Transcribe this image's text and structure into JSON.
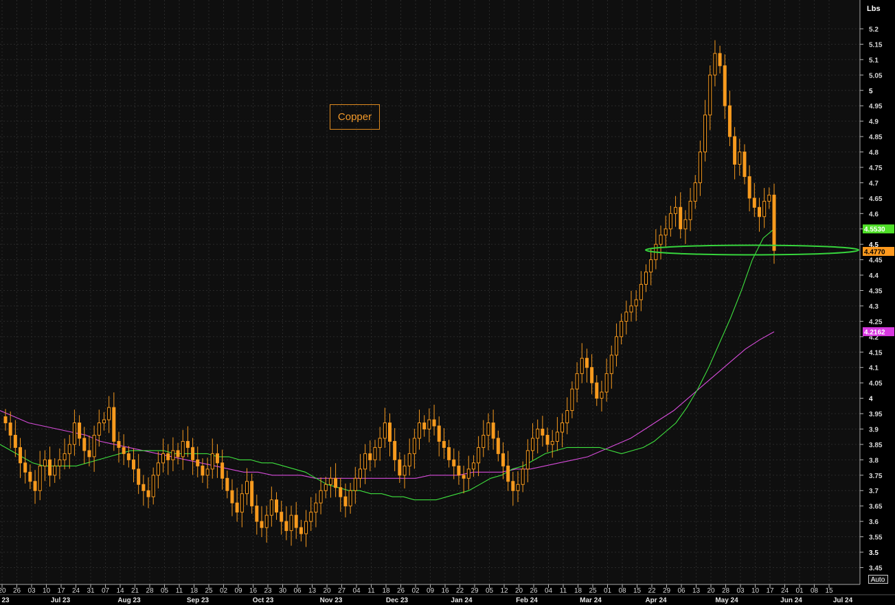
{
  "unit_label": "Lbs",
  "auto_label": "Auto",
  "chart_data": {
    "type": "candlestick",
    "title": "Copper",
    "ylim": [
      3.42,
      5.27
    ],
    "y_ticks": [
      3.45,
      3.5,
      3.55,
      3.6,
      3.65,
      3.7,
      3.75,
      3.8,
      3.85,
      3.9,
      3.95,
      4,
      4.05,
      4.1,
      4.15,
      4.2,
      4.25,
      4.3,
      4.35,
      4.4,
      4.45,
      4.5,
      4.55,
      4.6,
      4.65,
      4.7,
      4.75,
      4.8,
      4.85,
      4.9,
      4.95,
      5,
      5.05,
      5.1,
      5.15,
      5.2
    ],
    "x_ticks": [
      "20",
      "26",
      "03",
      "10",
      "17",
      "24",
      "31",
      "07",
      "14",
      "21",
      "28",
      "05",
      "11",
      "18",
      "25",
      "02",
      "09",
      "16",
      "23",
      "30",
      "06",
      "13",
      "20",
      "27",
      "04",
      "11",
      "18",
      "26",
      "02",
      "09",
      "16",
      "22",
      "29",
      "05",
      "12",
      "20",
      "26",
      "04",
      "11",
      "18",
      "25",
      "01",
      "08",
      "15",
      "22",
      "29",
      "06",
      "13",
      "20",
      "28",
      "03",
      "10",
      "17",
      "24",
      "01",
      "08",
      "15"
    ],
    "month_labels": [
      "23",
      "Jul 23",
      "Aug 23",
      "Sep 23",
      "Oct 23",
      "Nov 23",
      "Dec 23",
      "Jan 24",
      "Feb 24",
      "Mar 24",
      "Apr 24",
      "May 24",
      "Jun 24",
      "Jul 24"
    ],
    "close": [
      3.92,
      3.88,
      3.84,
      3.79,
      3.76,
      3.73,
      3.7,
      3.78,
      3.8,
      3.75,
      3.78,
      3.8,
      3.82,
      3.85,
      3.92,
      3.87,
      3.83,
      3.81,
      3.88,
      3.92,
      3.93,
      3.97,
      3.86,
      3.84,
      3.82,
      3.8,
      3.77,
      3.72,
      3.7,
      3.68,
      3.75,
      3.79,
      3.82,
      3.8,
      3.83,
      3.81,
      3.86,
      3.84,
      3.8,
      3.78,
      3.75,
      3.77,
      3.82,
      3.79,
      3.74,
      3.7,
      3.66,
      3.63,
      3.69,
      3.73,
      3.65,
      3.6,
      3.58,
      3.62,
      3.67,
      3.63,
      3.6,
      3.57,
      3.62,
      3.58,
      3.56,
      3.6,
      3.63,
      3.66,
      3.7,
      3.72,
      3.74,
      3.71,
      3.68,
      3.65,
      3.7,
      3.74,
      3.77,
      3.82,
      3.8,
      3.84,
      3.87,
      3.92,
      3.86,
      3.8,
      3.75,
      3.78,
      3.82,
      3.87,
      3.92,
      3.9,
      3.93,
      3.91,
      3.86,
      3.84,
      3.8,
      3.78,
      3.75,
      3.74,
      3.77,
      3.79,
      3.84,
      3.88,
      3.92,
      3.87,
      3.82,
      3.78,
      3.73,
      3.7,
      3.72,
      3.77,
      3.83,
      3.87,
      3.9,
      3.88,
      3.85,
      3.86,
      3.89,
      3.92,
      3.96,
      4.03,
      4.08,
      4.13,
      4.1,
      4.05,
      4.0,
      4.02,
      4.08,
      4.14,
      4.2,
      4.25,
      4.28,
      4.3,
      4.32,
      4.37,
      4.41,
      4.45,
      4.5,
      4.53,
      4.55,
      4.6,
      4.62,
      4.55,
      4.58,
      4.64,
      4.7,
      4.8,
      4.92,
      5.05,
      5.12,
      5.08,
      4.95,
      4.85,
      4.76,
      4.8,
      4.72,
      4.65,
      4.62,
      4.59,
      4.64,
      4.66,
      4.48
    ],
    "series": [
      {
        "name": "4.5530",
        "values": [
          3.85,
          3.83,
          3.81,
          3.79,
          3.78,
          3.78,
          3.78,
          3.78,
          3.79,
          3.8,
          3.81,
          3.82,
          3.83,
          3.83,
          3.83,
          3.83,
          3.82,
          3.82,
          3.82,
          3.82,
          3.81,
          3.81,
          3.8,
          3.8,
          3.79,
          3.79,
          3.78,
          3.77,
          3.76,
          3.74,
          3.72,
          3.71,
          3.7,
          3.7,
          3.69,
          3.69,
          3.68,
          3.68,
          3.67,
          3.67,
          3.67,
          3.68,
          3.69,
          3.7,
          3.72,
          3.74,
          3.75,
          3.77,
          3.78,
          3.8,
          3.82,
          3.83,
          3.84,
          3.84,
          3.84,
          3.84,
          3.83,
          3.82,
          3.83,
          3.84,
          3.86,
          3.89,
          3.92,
          3.97,
          4.03,
          4.1,
          4.18,
          4.26,
          4.35,
          4.45,
          4.52,
          4.55
        ]
      },
      {
        "name": "4.2162",
        "values": [
          3.96,
          3.94,
          3.92,
          3.91,
          3.9,
          3.89,
          3.88,
          3.86,
          3.85,
          3.84,
          3.83,
          3.82,
          3.81,
          3.8,
          3.79,
          3.78,
          3.77,
          3.76,
          3.76,
          3.75,
          3.75,
          3.75,
          3.74,
          3.74,
          3.74,
          3.74,
          3.74,
          3.74,
          3.74,
          3.74,
          3.75,
          3.75,
          3.75,
          3.76,
          3.76,
          3.76,
          3.77,
          3.77,
          3.78,
          3.79,
          3.8,
          3.81,
          3.83,
          3.85,
          3.87,
          3.9,
          3.93,
          3.96,
          4.0,
          4.04,
          4.08,
          4.12,
          4.16,
          4.19,
          4.2162
        ]
      }
    ],
    "last_price": {
      "value": 4.477,
      "label": "4.4770",
      "color": "#ff9a1e"
    },
    "colors": {
      "candle": "#f79a1e",
      "ma_short": "#3fe43f",
      "ma_long": "#d84cdc",
      "ellipse": "#37d63d",
      "grid": "#2a2a2a",
      "background": "#0f0f0f"
    }
  }
}
